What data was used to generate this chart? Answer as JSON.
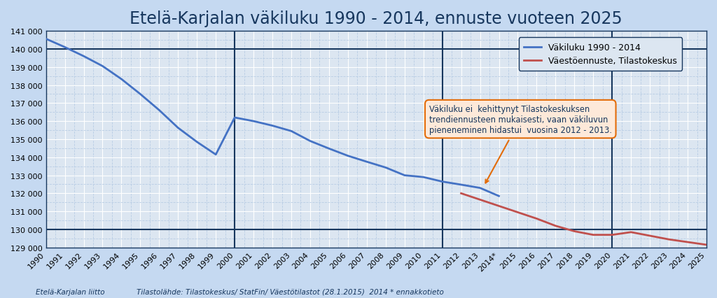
{
  "title": "Etelä-Karjalan väkiluku 1990 - 2014, ennuste vuoteen 2025",
  "title_fontsize": 17,
  "background_color": "#c5d9f1",
  "plot_background_color": "#dce6f1",
  "grid_major_color": "#ffffff",
  "grid_minor_color": "#b8cce4",
  "actual_line_color": "#4472c4",
  "forecast_line_color": "#c0504d",
  "actual_label": "Väkiluku 1990 - 2014",
  "forecast_label": "Väestöennuste, Tilastokeskus",
  "tick_fontsize": 8,
  "footer_left": "Etelä-Karjalan liitto",
  "footer_right": "Tilastolähde: Tilastokeskus/ StatFin/ Väestötilastot (28.1.2015)  2014 * ennakkotieto",
  "ylim": [
    129000,
    141000
  ],
  "yticks": [
    129000,
    130000,
    131000,
    132000,
    133000,
    134000,
    135000,
    136000,
    137000,
    138000,
    139000,
    140000,
    141000
  ],
  "vertical_lines": [
    2000,
    2011,
    2020
  ],
  "actual_years": [
    1990,
    1991,
    1992,
    1993,
    1994,
    1995,
    1996,
    1997,
    1998,
    1999,
    2000,
    2001,
    2002,
    2003,
    2004,
    2005,
    2006,
    2007,
    2008,
    2009,
    2010,
    2011,
    2012,
    2013,
    2014
  ],
  "actual_values": [
    140561,
    140100,
    139600,
    139050,
    138330,
    137500,
    136610,
    135630,
    134850,
    134150,
    136200,
    136000,
    135750,
    135450,
    134900,
    134480,
    134080,
    133750,
    133430,
    133000,
    132900,
    132650,
    132480,
    132300,
    131850
  ],
  "forecast_years": [
    2012,
    2013,
    2014,
    2015,
    2016,
    2017,
    2018,
    2019,
    2020,
    2021,
    2022,
    2023,
    2024,
    2025
  ],
  "forecast_values": [
    132000,
    131650,
    131300,
    130950,
    130600,
    130200,
    129900,
    129700,
    129700,
    129850,
    129650,
    129450,
    129300,
    129150
  ],
  "annotation_text": "Väkiluku ei  kehittynyt Tilastokeskuksen\ntrendiennusteen mukaisesti, vaan väkiluvun\npieneneminen hidastui  vuosina 2012 - 2013.",
  "arrow_color": "#e36c09",
  "annot_box_color": "#fde9d9",
  "annot_edge_color": "#e36c09",
  "spine_color": "#17375e",
  "vline_color": "#17375e"
}
